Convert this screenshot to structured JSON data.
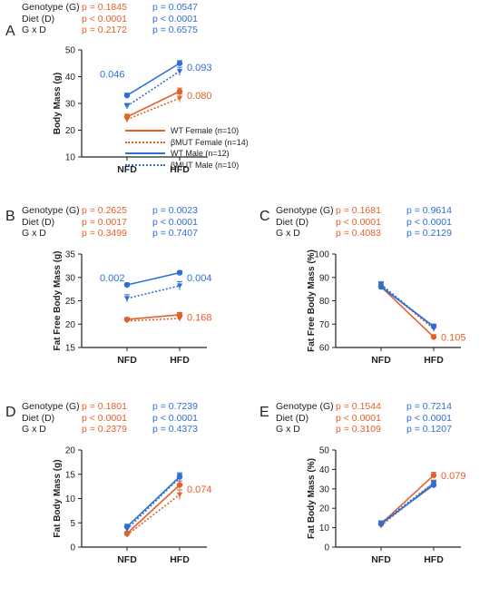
{
  "colors": {
    "female": "#e4602a",
    "male": "#2d6fd6",
    "axis": "#222222"
  },
  "legend": [
    {
      "label": "WT Female (n=10)",
      "color": "#e4602a",
      "dash": false
    },
    {
      "label": "βMUT Female (n=14)",
      "color": "#e4602a",
      "dash": true
    },
    {
      "label": "WT Male (n=12)",
      "color": "#2d6fd6",
      "dash": false
    },
    {
      "label": "βMUT Male (n=10)",
      "color": "#2d6fd6",
      "dash": true
    }
  ],
  "panels": [
    {
      "letter": "A",
      "stats": [
        {
          "label": "Genotype (G)",
          "female": "p = 0.1845",
          "male": "p = 0.0547"
        },
        {
          "label": "Diet (D)",
          "female": "p < 0.0001",
          "male": "p < 0.0001"
        },
        {
          "label": "G x D",
          "female": "p = 0.2172",
          "male": "p = 0.6575"
        }
      ]
    },
    {
      "letter": "B",
      "stats": [
        {
          "label": "Genotype (G)",
          "female": "p = 0.2625",
          "male": "p = 0.0023"
        },
        {
          "label": "Diet (D)",
          "female": "p = 0.0017",
          "male": "p < 0.0001"
        },
        {
          "label": "G x D",
          "female": "p = 0.3499",
          "male": "p = 0.7407"
        }
      ]
    },
    {
      "letter": "C",
      "stats": [
        {
          "label": "Genotype (G)",
          "female": "p = 0.1681",
          "male": "p = 0.9614"
        },
        {
          "label": "Diet (D)",
          "female": "p < 0.0001",
          "male": "p < 0.0001"
        },
        {
          "label": "G x D",
          "female": "p = 0.4083",
          "male": "p = 0.2129"
        }
      ]
    },
    {
      "letter": "D",
      "stats": [
        {
          "label": "Genotype (G)",
          "female": "p = 0.1801",
          "male": "p = 0.7239"
        },
        {
          "label": "Diet (D)",
          "female": "p < 0.0001",
          "male": "p < 0.0001"
        },
        {
          "label": "G x D",
          "female": "p = 0.2379",
          "male": "p = 0.4373"
        }
      ]
    },
    {
      "letter": "E",
      "stats": [
        {
          "label": "Genotype (G)",
          "female": "p = 0.1544",
          "male": "p = 0.7214"
        },
        {
          "label": "Diet (D)",
          "female": "p < 0.0001",
          "male": "p < 0.0001"
        },
        {
          "label": "G x D",
          "female": "p = 0.3109",
          "male": "p = 0.1207"
        }
      ]
    }
  ],
  "chart_data": [
    {
      "id": "A",
      "type": "line",
      "ylabel": "Body Mass (g)",
      "ylim": [
        10,
        50
      ],
      "yticks": [
        10,
        20,
        30,
        40,
        50
      ],
      "categories": [
        "NFD",
        "HFD"
      ],
      "series": [
        {
          "name": "WT Female (n=10)",
          "group": "female",
          "dash": false,
          "values": [
            25,
            34.5
          ],
          "errors": [
            1.0,
            1.2
          ]
        },
        {
          "name": "βMUT Female (n=14)",
          "group": "female",
          "dash": true,
          "values": [
            24,
            32
          ],
          "errors": [
            1.0,
            1.5
          ]
        },
        {
          "name": "WT Male (n=12)",
          "group": "male",
          "dash": false,
          "values": [
            33,
            45
          ],
          "errors": [
            0.8,
            1.0
          ]
        },
        {
          "name": "βMUT Male (n=10)",
          "group": "male",
          "dash": true,
          "values": [
            29,
            42
          ],
          "errors": [
            1.0,
            1.5
          ]
        }
      ],
      "annotations": [
        {
          "text": "0.046",
          "group": "male",
          "x": "NFD",
          "y": 41
        },
        {
          "text": "0.093",
          "group": "male",
          "x": "HFD",
          "y": 43.5
        },
        {
          "text": "0.080",
          "group": "female",
          "x": "HFD",
          "y": 33
        }
      ]
    },
    {
      "id": "B",
      "type": "line",
      "ylabel": "Fat Free Body Mass (g)",
      "ylim": [
        15,
        35
      ],
      "yticks": [
        15,
        20,
        25,
        30,
        35
      ],
      "categories": [
        "NFD",
        "HFD"
      ],
      "series": [
        {
          "name": "WT Female (n=10)",
          "group": "female",
          "dash": false,
          "values": [
            21,
            22
          ],
          "errors": [
            0.4,
            0.5
          ]
        },
        {
          "name": "βMUT Female (n=14)",
          "group": "female",
          "dash": true,
          "values": [
            20.7,
            21.2
          ],
          "errors": [
            0.4,
            0.5
          ]
        },
        {
          "name": "WT Male (n=12)",
          "group": "male",
          "dash": false,
          "values": [
            28.4,
            31
          ],
          "errors": [
            0.4,
            0.4
          ]
        },
        {
          "name": "βMUT Male (n=10)",
          "group": "male",
          "dash": true,
          "values": [
            25.5,
            28.2
          ],
          "errors": [
            0.8,
            0.9
          ]
        }
      ],
      "annotations": [
        {
          "text": "0.002",
          "group": "male",
          "x": "NFD",
          "y": 30
        },
        {
          "text": "0.004",
          "group": "male",
          "x": "HFD",
          "y": 30
        },
        {
          "text": "0.168",
          "group": "female",
          "x": "HFD",
          "y": 21.5
        }
      ]
    },
    {
      "id": "C",
      "type": "line",
      "ylabel": "Fat Free Body Mass (%)",
      "ylim": [
        60,
        100
      ],
      "yticks": [
        60,
        70,
        80,
        90,
        100
      ],
      "categories": [
        "NFD",
        "HFD"
      ],
      "series": [
        {
          "name": "WT Female (n=10)",
          "group": "female",
          "dash": false,
          "values": [
            86,
            64.5
          ],
          "errors": [
            0.8,
            1.0
          ]
        },
        {
          "name": "βMUT Female (n=14)",
          "group": "female",
          "dash": true,
          "values": [
            86.5,
            68
          ],
          "errors": [
            1.2,
            1.2
          ]
        },
        {
          "name": "WT Male (n=12)",
          "group": "male",
          "dash": false,
          "values": [
            86,
            69
          ],
          "errors": [
            0.8,
            1.0
          ]
        },
        {
          "name": "βMUT Male (n=10)",
          "group": "male",
          "dash": true,
          "values": [
            87,
            68.5
          ],
          "errors": [
            1.2,
            1.2
          ]
        }
      ],
      "annotations": [
        {
          "text": "0.105",
          "group": "female",
          "x": "HFD",
          "y": 64.5
        }
      ]
    },
    {
      "id": "D",
      "type": "line",
      "ylabel": "Fat Body Mass (g)",
      "ylim": [
        0,
        20
      ],
      "yticks": [
        0,
        5,
        10,
        15,
        20
      ],
      "categories": [
        "NFD",
        "HFD"
      ],
      "series": [
        {
          "name": "WT Female (n=10)",
          "group": "female",
          "dash": false,
          "values": [
            2.8,
            12.8
          ],
          "errors": [
            0.4,
            0.8
          ]
        },
        {
          "name": "βMUT Female (n=14)",
          "group": "female",
          "dash": true,
          "values": [
            2.5,
            10.8
          ],
          "errors": [
            0.4,
            1.0
          ]
        },
        {
          "name": "WT Male (n=12)",
          "group": "male",
          "dash": false,
          "values": [
            4.2,
            14.5
          ],
          "errors": [
            0.5,
            0.8
          ]
        },
        {
          "name": "βMUT Male (n=10)",
          "group": "male",
          "dash": true,
          "values": [
            3.7,
            14.3
          ],
          "errors": [
            0.5,
            0.8
          ]
        }
      ],
      "annotations": [
        {
          "text": "0.074",
          "group": "female",
          "x": "HFD",
          "y": 12
        }
      ]
    },
    {
      "id": "E",
      "type": "line",
      "ylabel": "Fat Body Mass (%)",
      "ylim": [
        0,
        50
      ],
      "yticks": [
        0,
        10,
        20,
        30,
        40,
        50
      ],
      "categories": [
        "NFD",
        "HFD"
      ],
      "series": [
        {
          "name": "WT Female (n=10)",
          "group": "female",
          "dash": false,
          "values": [
            12,
            37
          ],
          "errors": [
            1.0,
            1.5
          ]
        },
        {
          "name": "βMUT Female (n=14)",
          "group": "female",
          "dash": true,
          "values": [
            11,
            33
          ],
          "errors": [
            1.2,
            1.5
          ]
        },
        {
          "name": "WT Male (n=12)",
          "group": "male",
          "dash": false,
          "values": [
            12,
            32
          ],
          "errors": [
            1.0,
            1.2
          ]
        },
        {
          "name": "βMUT Male (n=10)",
          "group": "male",
          "dash": true,
          "values": [
            12.5,
            33
          ],
          "errors": [
            1.0,
            1.2
          ]
        }
      ],
      "annotations": [
        {
          "text": "0.079",
          "group": "female",
          "x": "HFD",
          "y": 37
        }
      ]
    }
  ]
}
